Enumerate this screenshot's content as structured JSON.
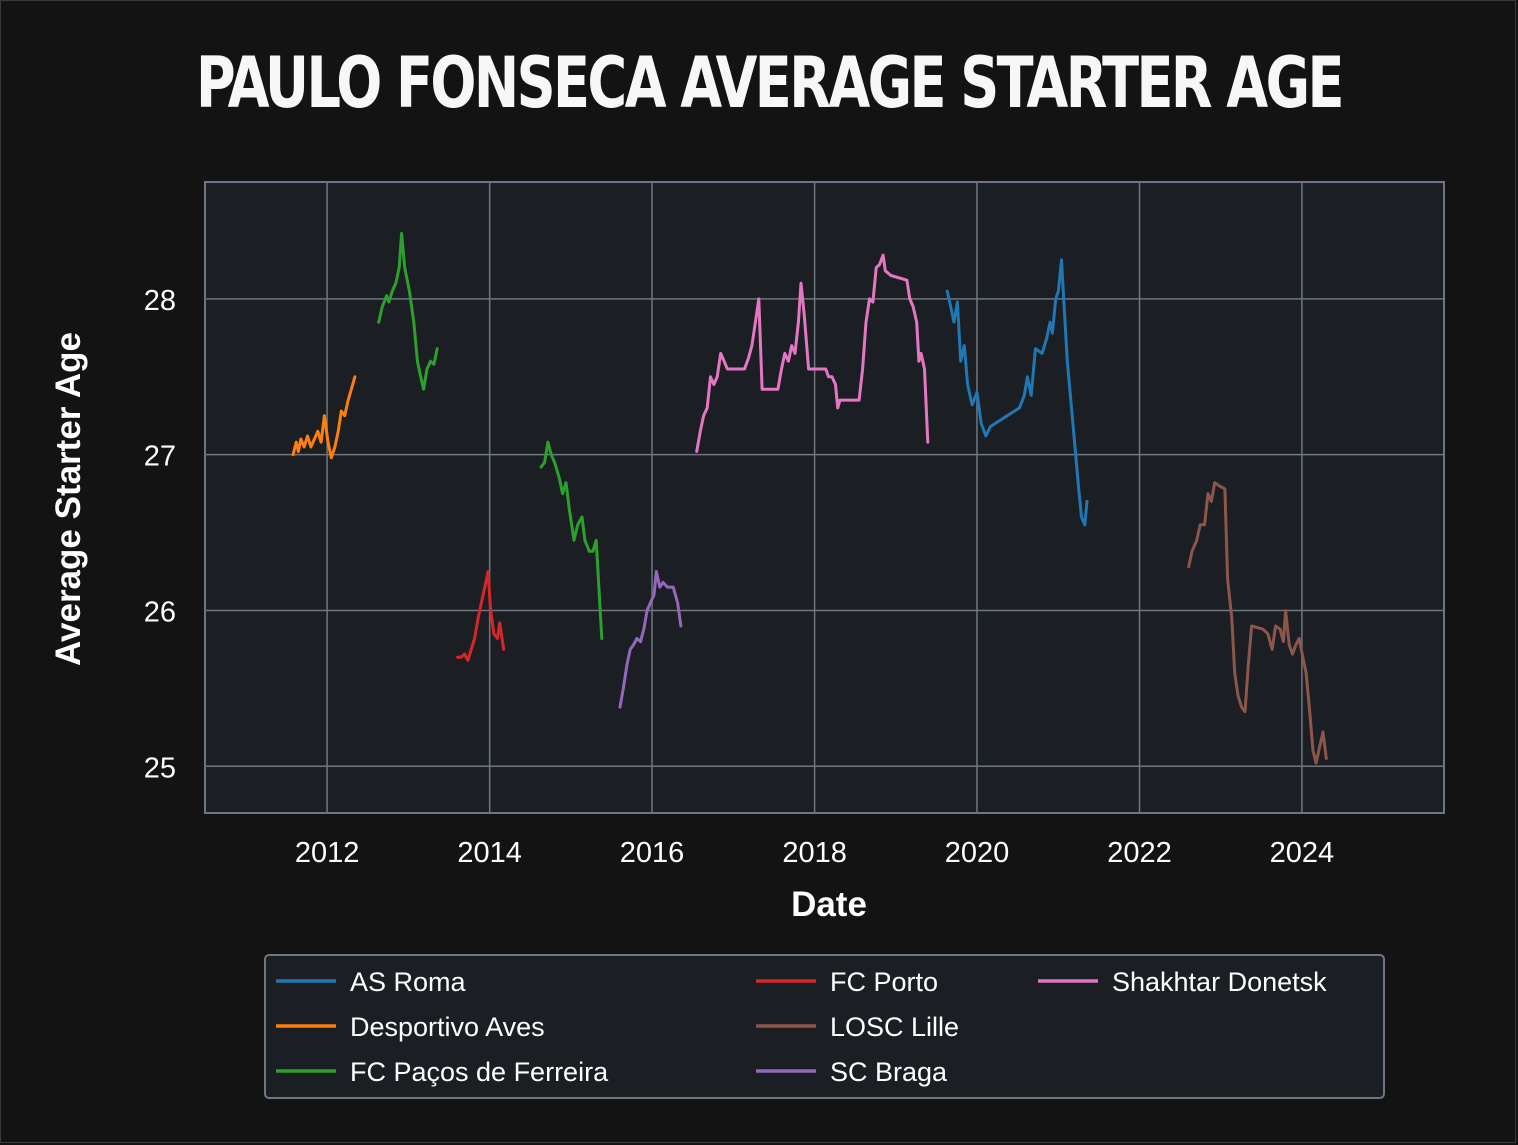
{
  "chart_data": {
    "type": "line",
    "title": "PAULO FONSECA AVERAGE STARTER AGE",
    "xlabel": "Date",
    "ylabel": "Average Starter Age",
    "x_ticks": [
      "2012",
      "2014",
      "2016",
      "2018",
      "2020",
      "2022",
      "2024"
    ],
    "y_ticks": [
      25,
      26,
      27,
      28
    ],
    "xlim": [
      "2010-07-01",
      "2025-10-01"
    ],
    "ylim": [
      24.7,
      28.75
    ],
    "grid": true,
    "legend_position": "bottom",
    "series": [
      {
        "name": "AS Roma",
        "color": "#1f77b4",
        "points": [
          [
            "2019-08-20",
            28.05
          ],
          [
            "2019-09-05",
            27.95
          ],
          [
            "2019-09-20",
            27.85
          ],
          [
            "2019-10-05",
            27.98
          ],
          [
            "2019-10-20",
            27.6
          ],
          [
            "2019-11-05",
            27.7
          ],
          [
            "2019-11-20",
            27.45
          ],
          [
            "2019-12-10",
            27.32
          ],
          [
            "2020-01-01",
            27.4
          ],
          [
            "2020-01-20",
            27.2
          ],
          [
            "2020-02-10",
            27.12
          ],
          [
            "2020-03-01",
            27.18
          ],
          [
            "2020-07-10",
            27.3
          ],
          [
            "2020-08-01",
            27.38
          ],
          [
            "2020-08-15",
            27.5
          ],
          [
            "2020-09-01",
            27.38
          ],
          [
            "2020-09-20",
            27.68
          ],
          [
            "2020-10-20",
            27.65
          ],
          [
            "2020-11-10",
            27.75
          ],
          [
            "2020-11-25",
            27.85
          ],
          [
            "2020-12-05",
            27.78
          ],
          [
            "2020-12-20",
            28.0
          ],
          [
            "2021-01-01",
            28.05
          ],
          [
            "2021-01-15",
            28.25
          ],
          [
            "2021-01-25",
            28.0
          ],
          [
            "2021-02-10",
            27.6
          ],
          [
            "2021-03-01",
            27.3
          ],
          [
            "2021-03-20",
            27.0
          ],
          [
            "2021-04-01",
            26.8
          ],
          [
            "2021-04-15",
            26.6
          ],
          [
            "2021-04-30",
            26.55
          ],
          [
            "2021-05-10",
            26.7
          ]
        ]
      },
      {
        "name": "Desportivo Aves",
        "color": "#ff7f0e",
        "points": [
          [
            "2011-08-01",
            27.0
          ],
          [
            "2011-08-15",
            27.08
          ],
          [
            "2011-08-25",
            27.02
          ],
          [
            "2011-09-05",
            27.1
          ],
          [
            "2011-09-20",
            27.05
          ],
          [
            "2011-10-05",
            27.12
          ],
          [
            "2011-10-20",
            27.05
          ],
          [
            "2011-11-05",
            27.1
          ],
          [
            "2011-11-20",
            27.15
          ],
          [
            "2011-12-05",
            27.08
          ],
          [
            "2011-12-20",
            27.25
          ],
          [
            "2012-01-05",
            27.08
          ],
          [
            "2012-01-20",
            26.98
          ],
          [
            "2012-02-05",
            27.05
          ],
          [
            "2012-02-20",
            27.15
          ],
          [
            "2012-03-05",
            27.28
          ],
          [
            "2012-03-20",
            27.25
          ],
          [
            "2012-04-05",
            27.35
          ],
          [
            "2012-04-25",
            27.45
          ],
          [
            "2012-05-05",
            27.5
          ]
        ]
      },
      {
        "name": "FC Paços de Ferreira",
        "color": "#2ca02c",
        "points": [
          [
            "2012-08-20",
            27.85
          ],
          [
            "2012-09-05",
            27.95
          ],
          [
            "2012-09-25",
            28.02
          ],
          [
            "2012-10-05",
            27.98
          ],
          [
            "2012-10-20",
            28.05
          ],
          [
            "2012-11-05",
            28.1
          ],
          [
            "2012-11-20",
            28.2
          ],
          [
            "2012-12-01",
            28.42
          ],
          [
            "2012-12-15",
            28.2
          ],
          [
            "2013-01-05",
            28.05
          ],
          [
            "2013-01-25",
            27.85
          ],
          [
            "2013-02-10",
            27.6
          ],
          [
            "2013-02-25",
            27.5
          ],
          [
            "2013-03-10",
            27.42
          ],
          [
            "2013-03-25",
            27.55
          ],
          [
            "2013-04-10",
            27.6
          ],
          [
            "2013-04-25",
            27.58
          ],
          [
            "2013-05-10",
            27.68
          ],
          null,
          [
            "2014-08-20",
            26.92
          ],
          [
            "2014-09-05",
            26.95
          ],
          [
            "2014-09-20",
            27.08
          ],
          [
            "2014-10-05",
            27.0
          ],
          [
            "2014-10-20",
            26.95
          ],
          [
            "2014-11-10",
            26.85
          ],
          [
            "2014-11-25",
            26.75
          ],
          [
            "2014-12-10",
            26.82
          ],
          [
            "2014-12-25",
            26.65
          ],
          [
            "2015-01-15",
            26.45
          ],
          [
            "2015-02-01",
            26.55
          ],
          [
            "2015-02-20",
            26.6
          ],
          [
            "2015-03-05",
            26.45
          ],
          [
            "2015-03-25",
            26.38
          ],
          [
            "2015-04-10",
            26.38
          ],
          [
            "2015-04-25",
            26.45
          ],
          [
            "2015-05-20",
            25.82
          ]
        ]
      },
      {
        "name": "FC Porto",
        "color": "#d62728",
        "points": [
          [
            "2013-08-10",
            25.7
          ],
          [
            "2013-08-25",
            25.7
          ],
          [
            "2013-09-10",
            25.72
          ],
          [
            "2013-09-25",
            25.68
          ],
          [
            "2013-10-10",
            25.75
          ],
          [
            "2013-10-25",
            25.82
          ],
          [
            "2013-11-10",
            25.95
          ],
          [
            "2013-11-25",
            26.05
          ],
          [
            "2013-12-10",
            26.15
          ],
          [
            "2013-12-25",
            26.25
          ],
          [
            "2014-01-05",
            26.0
          ],
          [
            "2014-01-20",
            25.85
          ],
          [
            "2014-02-05",
            25.82
          ],
          [
            "2014-02-15",
            25.92
          ],
          [
            "2014-03-05",
            25.75
          ]
        ]
      },
      {
        "name": "LOSC Lille",
        "color": "#8c564b",
        "points": [
          [
            "2022-08-10",
            26.28
          ],
          [
            "2022-08-25",
            26.38
          ],
          [
            "2022-09-15",
            26.45
          ],
          [
            "2022-10-01",
            26.55
          ],
          [
            "2022-10-20",
            26.55
          ],
          [
            "2022-11-05",
            26.75
          ],
          [
            "2022-11-20",
            26.7
          ],
          [
            "2022-12-05",
            26.82
          ],
          [
            "2022-12-25",
            26.8
          ],
          [
            "2023-01-20",
            26.78
          ],
          [
            "2023-02-01",
            26.2
          ],
          [
            "2023-02-20",
            25.95
          ],
          [
            "2023-03-05",
            25.6
          ],
          [
            "2023-03-20",
            25.45
          ],
          [
            "2023-04-05",
            25.38
          ],
          [
            "2023-04-20",
            25.35
          ],
          [
            "2023-05-05",
            25.65
          ],
          [
            "2023-05-20",
            25.9
          ],
          [
            "2023-07-10",
            25.88
          ],
          [
            "2023-08-01",
            25.85
          ],
          [
            "2023-08-20",
            25.75
          ],
          [
            "2023-09-05",
            25.9
          ],
          [
            "2023-09-25",
            25.88
          ],
          [
            "2023-10-10",
            25.8
          ],
          [
            "2023-10-20",
            26.0
          ],
          [
            "2023-11-05",
            25.78
          ],
          [
            "2023-11-20",
            25.72
          ],
          [
            "2023-12-05",
            25.78
          ],
          [
            "2023-12-20",
            25.82
          ],
          [
            "2024-01-05",
            25.7
          ],
          [
            "2024-01-20",
            25.6
          ],
          [
            "2024-02-05",
            25.35
          ],
          [
            "2024-02-20",
            25.1
          ],
          [
            "2024-03-05",
            25.02
          ],
          [
            "2024-03-20",
            25.12
          ],
          [
            "2024-04-05",
            25.22
          ],
          [
            "2024-04-20",
            25.05
          ]
        ]
      },
      {
        "name": "SC Braga",
        "color": "#9467bd",
        "points": [
          [
            "2015-08-10",
            25.38
          ],
          [
            "2015-08-25",
            25.5
          ],
          [
            "2015-09-10",
            25.65
          ],
          [
            "2015-09-25",
            25.75
          ],
          [
            "2015-10-10",
            25.78
          ],
          [
            "2015-10-25",
            25.82
          ],
          [
            "2015-11-10",
            25.8
          ],
          [
            "2015-11-25",
            25.88
          ],
          [
            "2015-12-10",
            26.0
          ],
          [
            "2015-12-25",
            26.05
          ],
          [
            "2016-01-10",
            26.1
          ],
          [
            "2016-01-20",
            26.25
          ],
          [
            "2016-02-05",
            26.15
          ],
          [
            "2016-02-20",
            26.18
          ],
          [
            "2016-03-10",
            26.15
          ],
          [
            "2016-04-05",
            26.15
          ],
          [
            "2016-04-25",
            26.05
          ],
          [
            "2016-05-10",
            25.9
          ]
        ]
      },
      {
        "name": "Shakhtar Donetsk",
        "color": "#e377c2",
        "points": [
          [
            "2016-07-20",
            27.02
          ],
          [
            "2016-08-05",
            27.15
          ],
          [
            "2016-08-20",
            27.25
          ],
          [
            "2016-09-05",
            27.3
          ],
          [
            "2016-09-20",
            27.5
          ],
          [
            "2016-10-05",
            27.45
          ],
          [
            "2016-10-20",
            27.5
          ],
          [
            "2016-11-05",
            27.65
          ],
          [
            "2016-11-20",
            27.6
          ],
          [
            "2016-12-05",
            27.55
          ],
          [
            "2017-02-20",
            27.55
          ],
          [
            "2017-03-10",
            27.62
          ],
          [
            "2017-03-25",
            27.7
          ],
          [
            "2017-04-10",
            27.85
          ],
          [
            "2017-04-25",
            28.0
          ],
          [
            "2017-05-10",
            27.42
          ],
          [
            "2017-07-20",
            27.42
          ],
          [
            "2017-08-05",
            27.55
          ],
          [
            "2017-08-20",
            27.65
          ],
          [
            "2017-09-05",
            27.6
          ],
          [
            "2017-09-20",
            27.7
          ],
          [
            "2017-10-05",
            27.65
          ],
          [
            "2017-10-20",
            27.85
          ],
          [
            "2017-11-01",
            28.1
          ],
          [
            "2017-11-15",
            27.9
          ],
          [
            "2017-12-05",
            27.55
          ],
          [
            "2018-02-20",
            27.55
          ],
          [
            "2018-03-05",
            27.5
          ],
          [
            "2018-03-20",
            27.5
          ],
          [
            "2018-04-05",
            27.45
          ],
          [
            "2018-04-15",
            27.3
          ],
          [
            "2018-04-25",
            27.35
          ],
          [
            "2018-07-20",
            27.35
          ],
          [
            "2018-08-05",
            27.55
          ],
          [
            "2018-08-20",
            27.85
          ],
          [
            "2018-09-05",
            28.0
          ],
          [
            "2018-09-20",
            27.98
          ],
          [
            "2018-10-05",
            28.2
          ],
          [
            "2018-10-20",
            28.22
          ],
          [
            "2018-11-05",
            28.28
          ],
          [
            "2018-11-15",
            28.18
          ],
          [
            "2018-12-10",
            28.15
          ],
          [
            "2019-02-20",
            28.12
          ],
          [
            "2019-03-05",
            28.0
          ],
          [
            "2019-03-20",
            27.95
          ],
          [
            "2019-04-05",
            27.85
          ],
          [
            "2019-04-15",
            27.6
          ],
          [
            "2019-04-25",
            27.65
          ],
          [
            "2019-05-10",
            27.55
          ],
          [
            "2019-05-25",
            27.08
          ]
        ]
      }
    ]
  }
}
